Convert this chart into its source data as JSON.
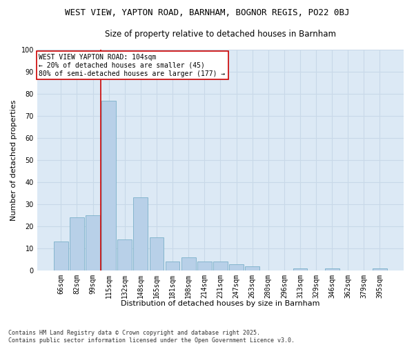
{
  "title1": "WEST VIEW, YAPTON ROAD, BARNHAM, BOGNOR REGIS, PO22 0BJ",
  "title2": "Size of property relative to detached houses in Barnham",
  "xlabel": "Distribution of detached houses by size in Barnham",
  "ylabel": "Number of detached properties",
  "categories": [
    "66sqm",
    "82sqm",
    "99sqm",
    "115sqm",
    "132sqm",
    "148sqm",
    "165sqm",
    "181sqm",
    "198sqm",
    "214sqm",
    "231sqm",
    "247sqm",
    "263sqm",
    "280sqm",
    "296sqm",
    "313sqm",
    "329sqm",
    "346sqm",
    "362sqm",
    "379sqm",
    "395sqm"
  ],
  "values": [
    13,
    24,
    25,
    77,
    14,
    33,
    15,
    4,
    6,
    4,
    4,
    3,
    2,
    0,
    0,
    1,
    0,
    1,
    0,
    0,
    1
  ],
  "bar_color": "#b8d0e8",
  "bar_edge_color": "#7aafc8",
  "vline_x_index": 2.5,
  "vline_color": "#cc0000",
  "annotation_text": "WEST VIEW YAPTON ROAD: 104sqm\n← 20% of detached houses are smaller (45)\n80% of semi-detached houses are larger (177) →",
  "annotation_box_color": "#ffffff",
  "annotation_box_edgecolor": "#cc0000",
  "ylim": [
    0,
    100
  ],
  "yticks": [
    0,
    10,
    20,
    30,
    40,
    50,
    60,
    70,
    80,
    90,
    100
  ],
  "grid_color": "#c8d8e8",
  "bg_color": "#dce9f5",
  "footer": "Contains HM Land Registry data © Crown copyright and database right 2025.\nContains public sector information licensed under the Open Government Licence v3.0.",
  "title_fontsize": 9,
  "subtitle_fontsize": 8.5,
  "axis_label_fontsize": 8,
  "tick_fontsize": 7,
  "annot_fontsize": 7
}
